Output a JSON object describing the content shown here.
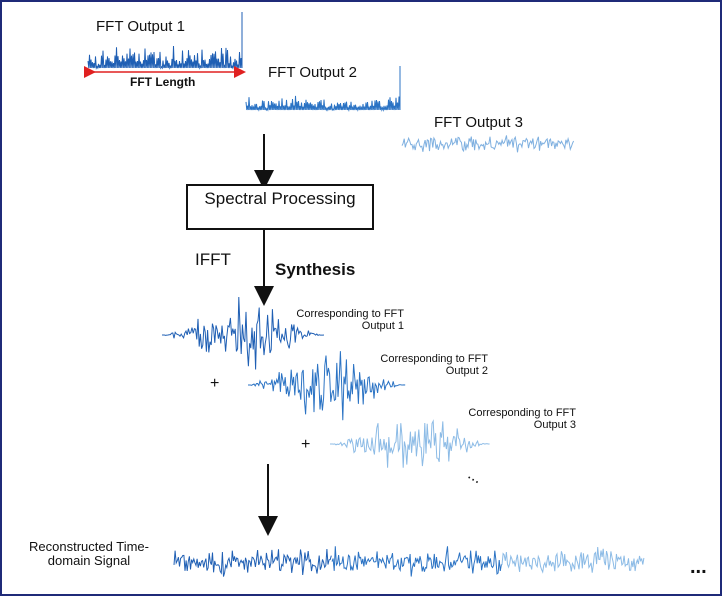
{
  "fft_outputs": [
    {
      "label": "FFT Output 1",
      "color": "#1f5fb4"
    },
    {
      "label": "FFT Output 2",
      "color": "#2b73c4"
    },
    {
      "label": "FFT Output 3",
      "color": "#7fb0e0"
    }
  ],
  "fft_length_label": "FFT Length",
  "fft_length_color": "#e02020",
  "spectral_processing_label": "Spectral Processing",
  "ifft_label": "IFFT",
  "synthesis_label": "Synthesis",
  "frames": [
    {
      "label": "Corresponding to FFT Output 1",
      "color": "#1f5fb4"
    },
    {
      "label": "Corresponding to FFT Output 2",
      "color": "#2b73c4"
    },
    {
      "label": "Corresponding to FFT Output 3",
      "color": "#8cbbe6"
    }
  ],
  "plus_sign": "+",
  "ellipsis": "...",
  "output_label": "Reconstructed Time-domain Signal",
  "output_ellipsis": "...",
  "border_color": "#1f2a78"
}
